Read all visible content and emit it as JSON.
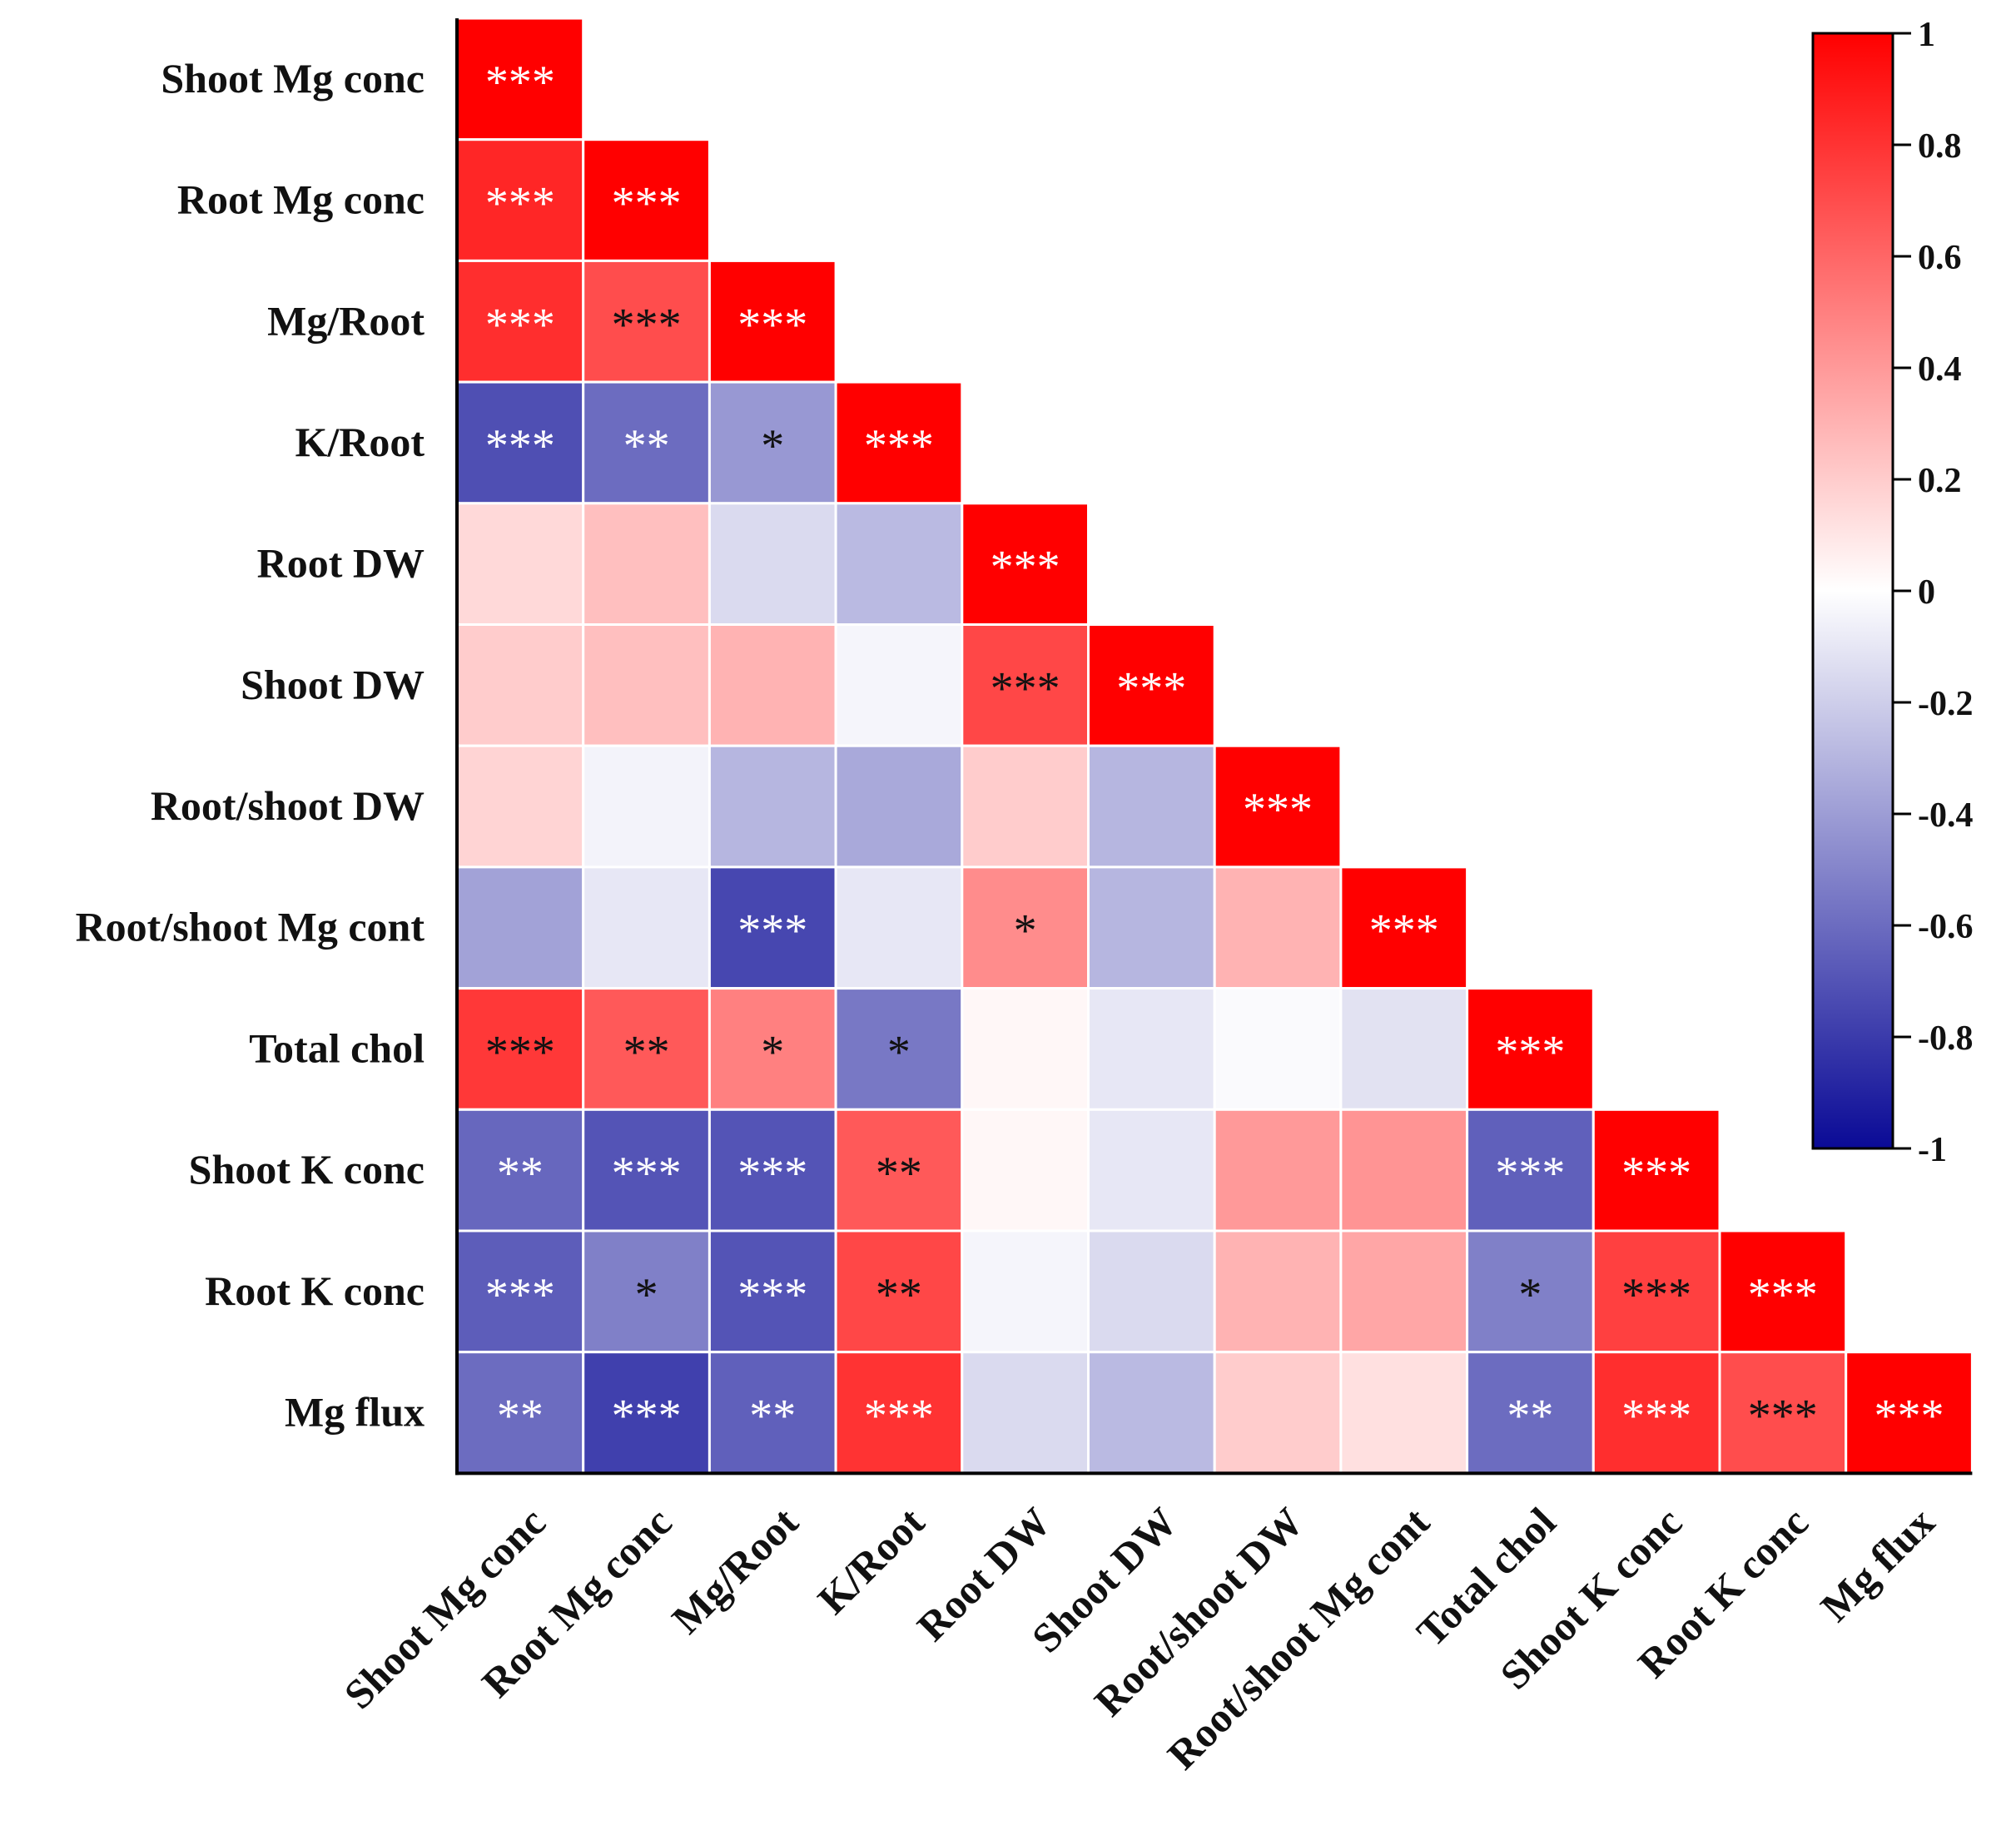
{
  "chart_data": {
    "type": "heatmap",
    "variables": [
      "Shoot Mg conc",
      "Root Mg conc",
      "Mg/Root",
      "K/Root",
      "Root DW",
      "Shoot DW",
      "Root/shoot DW",
      "Root/shoot Mg cont",
      "Total chol",
      "Shoot K conc",
      "Root K conc",
      "Mg flux"
    ],
    "triangle": "lower",
    "matrix": [
      [
        1.0
      ],
      [
        0.85,
        1.0
      ],
      [
        0.82,
        0.7,
        1.0
      ],
      [
        -0.72,
        -0.6,
        -0.42,
        1.0
      ],
      [
        0.15,
        0.25,
        -0.15,
        -0.28,
        1.0
      ],
      [
        0.2,
        0.25,
        0.3,
        -0.04,
        0.72,
        1.0
      ],
      [
        0.17,
        -0.05,
        -0.3,
        -0.35,
        0.2,
        -0.3,
        1.0
      ],
      [
        -0.38,
        -0.1,
        -0.75,
        -0.1,
        0.45,
        -0.3,
        0.3,
        1.0
      ],
      [
        0.78,
        0.65,
        0.5,
        -0.55,
        0.03,
        -0.1,
        -0.02,
        -0.12,
        1.0
      ],
      [
        -0.62,
        -0.7,
        -0.7,
        0.65,
        0.03,
        -0.1,
        0.4,
        0.42,
        -0.65,
        1.0
      ],
      [
        -0.66,
        -0.52,
        -0.7,
        0.72,
        -0.04,
        -0.15,
        0.3,
        0.35,
        -0.52,
        0.75,
        1.0
      ],
      [
        -0.6,
        -0.78,
        -0.65,
        0.8,
        -0.15,
        -0.28,
        0.2,
        0.12,
        -0.6,
        0.82,
        0.7,
        1.0
      ]
    ],
    "significance": [
      [
        "***"
      ],
      [
        "***",
        "***"
      ],
      [
        "***",
        "***",
        "***"
      ],
      [
        "***",
        "**",
        "*",
        "***"
      ],
      [
        "",
        "",
        "",
        "",
        "***"
      ],
      [
        "",
        "",
        "",
        "",
        "***",
        "***"
      ],
      [
        "",
        "",
        "",
        "",
        "",
        "",
        "***"
      ],
      [
        "",
        "",
        "***",
        "",
        "*",
        "",
        "",
        "***"
      ],
      [
        "***",
        "**",
        "*",
        "*",
        "",
        "",
        "",
        "",
        "***"
      ],
      [
        "**",
        "***",
        "***",
        "**",
        "",
        "",
        "",
        "",
        "***",
        "***"
      ],
      [
        "***",
        "*",
        "***",
        "**",
        "",
        "",
        "",
        "",
        "*",
        "***",
        "***"
      ],
      [
        "**",
        "***",
        "**",
        "***",
        "",
        "",
        "",
        "",
        "**",
        "***",
        "***",
        "***"
      ]
    ],
    "star_colors": [
      [
        "white"
      ],
      [
        "white",
        "white"
      ],
      [
        "white",
        "black",
        "white"
      ],
      [
        "white",
        "white",
        "black",
        "white"
      ],
      [
        "",
        "",
        "",
        "",
        "white"
      ],
      [
        "",
        "",
        "",
        "",
        "black",
        "white"
      ],
      [
        "",
        "",
        "",
        "",
        "",
        "",
        "white"
      ],
      [
        "",
        "",
        "white",
        "",
        "black",
        "",
        "",
        "white"
      ],
      [
        "black",
        "black",
        "black",
        "black",
        "",
        "",
        "",
        "",
        "white"
      ],
      [
        "white",
        "white",
        "white",
        "black",
        "",
        "",
        "",
        "",
        "white",
        "white"
      ],
      [
        "white",
        "black",
        "white",
        "black",
        "",
        "",
        "",
        "",
        "black",
        "black",
        "white"
      ],
      [
        "white",
        "white",
        "white",
        "white",
        "",
        "",
        "",
        "",
        "white",
        "white",
        "black",
        "white"
      ]
    ],
    "colorbar": {
      "range": [
        -1,
        1
      ],
      "ticks": [
        "1",
        "0.8",
        "0.6",
        "0.4",
        "0.2",
        "0",
        "-0.2",
        "-0.4",
        "-0.6",
        "-0.8",
        "-1"
      ],
      "colors": {
        "negative": "#0a0a96",
        "zero": "#ffffff",
        "positive": "#ff0000"
      }
    },
    "title": "",
    "xlabel": "",
    "ylabel": ""
  }
}
